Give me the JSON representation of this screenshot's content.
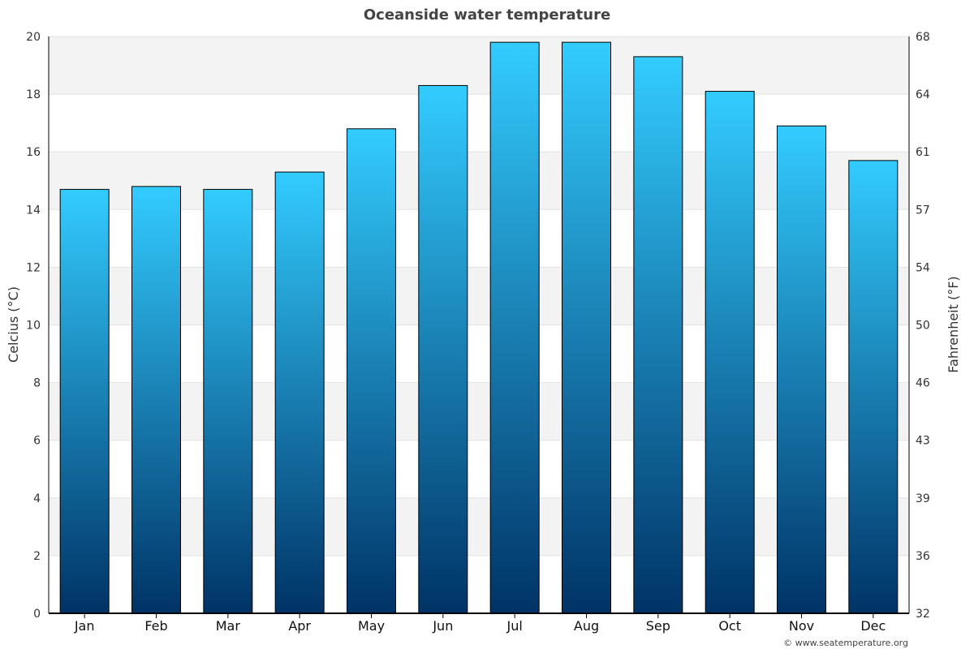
{
  "chart_data": {
    "type": "bar",
    "title": "Oceanside water temperature",
    "categories": [
      "Jan",
      "Feb",
      "Mar",
      "Apr",
      "May",
      "Jun",
      "Jul",
      "Aug",
      "Sep",
      "Oct",
      "Nov",
      "Dec"
    ],
    "values": [
      14.7,
      14.8,
      14.7,
      15.3,
      16.8,
      18.3,
      19.8,
      19.8,
      19.3,
      18.1,
      16.9,
      15.7
    ],
    "ylabel": "Celcius (°C)",
    "ylabel_right": "Fahrenheit (°F)",
    "ylim": [
      0,
      20
    ],
    "yticks": [
      "0",
      "2",
      "4",
      "6",
      "8",
      "10",
      "12",
      "14",
      "16",
      "18",
      "20"
    ],
    "yticks_right": [
      "32",
      "36",
      "39",
      "43",
      "46",
      "50",
      "54",
      "57",
      "61",
      "64",
      "68"
    ],
    "grid": true,
    "colors": {
      "bar_top": "#33ccff",
      "bar_bottom": "#003366",
      "band": "#f3f3f3",
      "edge": "#000000"
    }
  },
  "credit": "© www.seatemperature.org"
}
